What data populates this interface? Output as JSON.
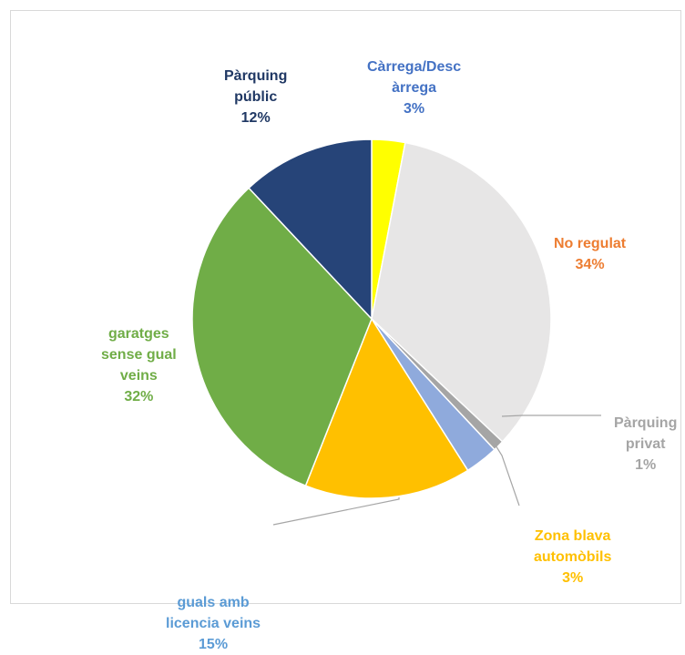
{
  "chart_data": {
    "type": "pie",
    "title": "",
    "start_angle_deg": 0,
    "direction": "clockwise",
    "slices": [
      {
        "name": "Càrrega/Desc\nàrrega",
        "value": 3,
        "pct_label": "3%",
        "color": "#ffff00",
        "label_color": "#4472c4"
      },
      {
        "name": "No regulat",
        "value": 34,
        "pct_label": "34%",
        "color": "#e7e6e6",
        "label_color": "#ed7d31"
      },
      {
        "name": "Pàrquing\nprivat",
        "value": 1,
        "pct_label": "1%",
        "color": "#a5a5a5",
        "label_color": "#a5a5a5"
      },
      {
        "name": "Zona blava\nautomòbils",
        "value": 3,
        "pct_label": "3%",
        "color": "#8faadc",
        "label_color": "#ffc000"
      },
      {
        "name": "guals amb\nlicencia veins",
        "value": 15,
        "pct_label": "15%",
        "color": "#ffc000",
        "label_color": "#5b9bd5"
      },
      {
        "name": "garatges\nsense gual\nveins",
        "value": 32,
        "pct_label": "32%",
        "color": "#70ad47",
        "label_color": "#70ad47"
      },
      {
        "name": "Pàrquing\npúblic",
        "value": 12,
        "pct_label": "12%",
        "color": "#264478",
        "label_color": "#203864"
      }
    ]
  }
}
